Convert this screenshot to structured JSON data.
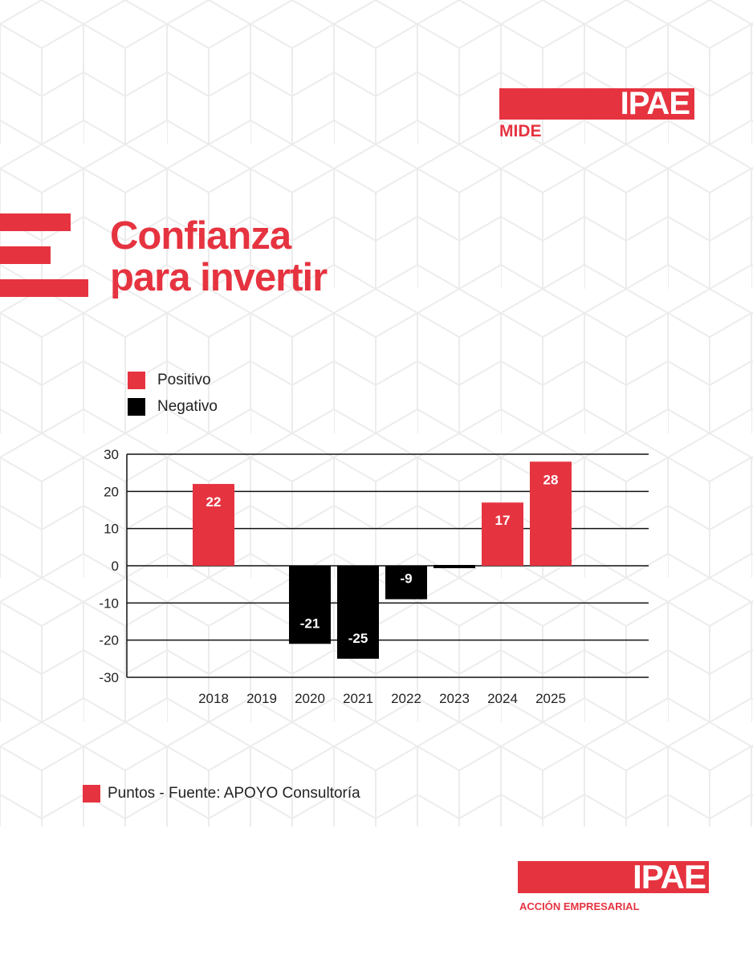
{
  "brand": {
    "logo_top": "IPAE",
    "logo_top_sub": "MIDE",
    "logo_bottom": "IPAE",
    "logo_bottom_sub": "ACCIÓN EMPRESARIAL",
    "accent_color": "#e63340",
    "negative_color": "#000000"
  },
  "title": {
    "line1": "Confianza",
    "line2": "para invertir"
  },
  "legend": {
    "positive": "Positivo",
    "negative": "Negativo"
  },
  "footnote": "Puntos - Fuente: APOYO Consultoría",
  "chart_data": {
    "type": "bar",
    "categories": [
      "2018",
      "2019",
      "2020",
      "2021",
      "2022",
      "2023",
      "2024",
      "2025"
    ],
    "values": [
      22,
      null,
      -21,
      -25,
      -9,
      0,
      17,
      28
    ],
    "value_labels": [
      "22",
      "",
      "-21",
      "-25",
      "-9",
      "",
      "17",
      "28"
    ],
    "yticks": [
      30,
      20,
      10,
      0,
      -10,
      -20,
      -30
    ],
    "ylim": [
      -30,
      30
    ],
    "grid": true,
    "legend_placement": "top-left",
    "positive_color": "#e63340",
    "negative_color": "#000000"
  }
}
